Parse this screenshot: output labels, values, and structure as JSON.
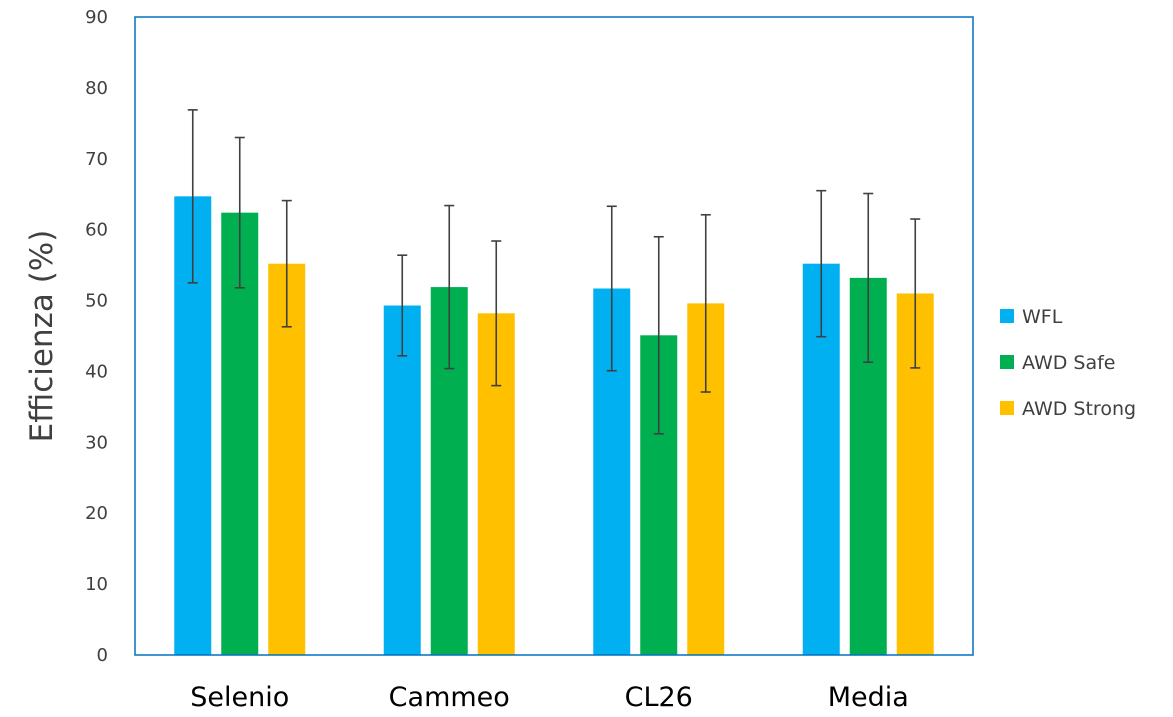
{
  "chart_data": {
    "type": "bar",
    "title": "",
    "xlabel": "",
    "ylabel": "Efficienza (%)",
    "ylim": [
      0,
      90
    ],
    "yticks": [
      0,
      10,
      20,
      30,
      40,
      50,
      60,
      70,
      80,
      90
    ],
    "grid": false,
    "legend_position": "right",
    "categories": [
      "Selenio",
      "Cammeo",
      "CL26",
      "Media"
    ],
    "series": [
      {
        "name": "WFL",
        "color": "#00B0F0",
        "values": [
          64.7,
          49.3,
          51.7,
          55.2
        ],
        "errors": [
          12.2,
          7.1,
          11.6,
          10.3
        ]
      },
      {
        "name": "AWD Safe",
        "color": "#00B050",
        "values": [
          62.4,
          51.9,
          45.1,
          53.2
        ],
        "errors": [
          10.6,
          11.5,
          13.9,
          11.9
        ]
      },
      {
        "name": "AWD Strong",
        "color": "#FFC000",
        "values": [
          55.2,
          48.2,
          49.6,
          51.0
        ],
        "errors": [
          8.9,
          10.2,
          12.5,
          10.5
        ]
      }
    ],
    "frame_color": "#0070C0",
    "errorbar_color": "#404040"
  }
}
